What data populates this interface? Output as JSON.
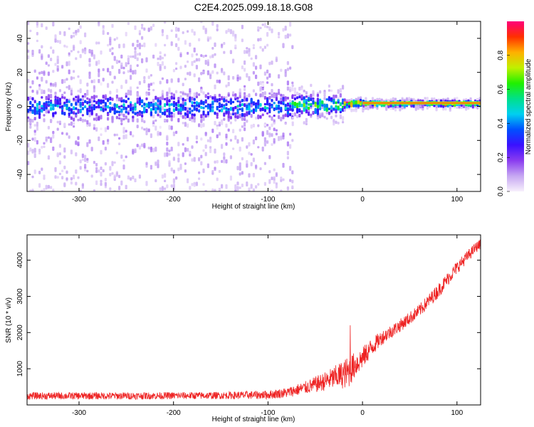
{
  "title": "C2E4.2025.099.18.18.G08",
  "colorbar": {
    "label": "Normalized spectral amplitude",
    "ticks": [
      "0.0",
      "0.2",
      "0.4",
      "0.6",
      "0.8"
    ],
    "tick_values": [
      0.0,
      0.2,
      0.4,
      0.6,
      0.8
    ],
    "range": [
      0,
      1
    ],
    "colors": [
      "#f7f0fc",
      "#c6a7f2",
      "#8a3cf0",
      "#3a10ff",
      "#0050ff",
      "#00d0f0",
      "#00e08a",
      "#20f000",
      "#c0f000",
      "#ffb000",
      "#ff3000",
      "#ff007a"
    ]
  },
  "chart_data": [
    {
      "type": "heatmap",
      "xlabel": "Height of straight line (km)",
      "ylabel": "Frequency (Hz)",
      "xlim": [
        -355,
        125
      ],
      "ylim": [
        -50,
        50
      ],
      "x_ticks": [
        -300,
        -200,
        -100,
        0,
        100
      ],
      "x_tick_labels": [
        "-300",
        "-200",
        "-100",
        "0",
        "100"
      ],
      "y_ticks": [
        -40,
        -20,
        0,
        20,
        40
      ],
      "y_tick_labels": [
        "-40",
        "-20",
        "0",
        "20",
        "40"
      ],
      "bands": [
        {
          "x": [
            -355,
            -75
          ],
          "freq_center": 0,
          "freq_halfwidth_core": 8,
          "freq_halfwidth_scatter": 50,
          "peak_amplitude": 0.45
        },
        {
          "x": [
            -75,
            -20
          ],
          "freq_center": 1,
          "freq_halfwidth_core": 6,
          "freq_halfwidth_scatter": 12,
          "peak_amplitude": 0.65
        },
        {
          "x": [
            -20,
            0
          ],
          "freq_center": 2,
          "freq_halfwidth_core": 2,
          "freq_halfwidth_scatter": 4,
          "peak_amplitude": 0.95
        },
        {
          "x": [
            0,
            125
          ],
          "freq_center": 2,
          "freq_halfwidth_core": 1.5,
          "freq_halfwidth_scatter": 3,
          "peak_amplitude": 0.75
        }
      ]
    },
    {
      "type": "line",
      "xlabel": "Height of straight line (km)",
      "ylabel": "SNR (10 * v/v)",
      "xlim": [
        -355,
        125
      ],
      "ylim": [
        0,
        4700
      ],
      "x_ticks": [
        -300,
        -200,
        -100,
        0,
        100
      ],
      "x_tick_labels": [
        "-300",
        "-200",
        "-100",
        "0",
        "100"
      ],
      "y_ticks": [
        1000,
        2000,
        3000,
        4000
      ],
      "y_tick_labels": [
        "1000",
        "2000",
        "3000",
        "4000"
      ],
      "series": [
        {
          "color": "#ee2222",
          "x": [
            -355,
            -300,
            -250,
            -200,
            -150,
            -100,
            -80,
            -60,
            -40,
            -30,
            -20,
            -15,
            -10,
            0,
            10,
            20,
            40,
            60,
            80,
            100,
            120,
            125
          ],
          "y": [
            250,
            250,
            250,
            255,
            260,
            280,
            340,
            480,
            650,
            750,
            850,
            900,
            1050,
            1300,
            1600,
            1850,
            2200,
            2600,
            3150,
            3800,
            4350,
            4450
          ],
          "noise": [
            100,
            100,
            100,
            100,
            100,
            120,
            140,
            180,
            260,
            320,
            400,
            450,
            380,
            300,
            260,
            200,
            180,
            180,
            200,
            180,
            150,
            140
          ]
        }
      ],
      "annotations": [
        {
          "x": -13,
          "y": 2200,
          "label": ""
        }
      ]
    }
  ]
}
